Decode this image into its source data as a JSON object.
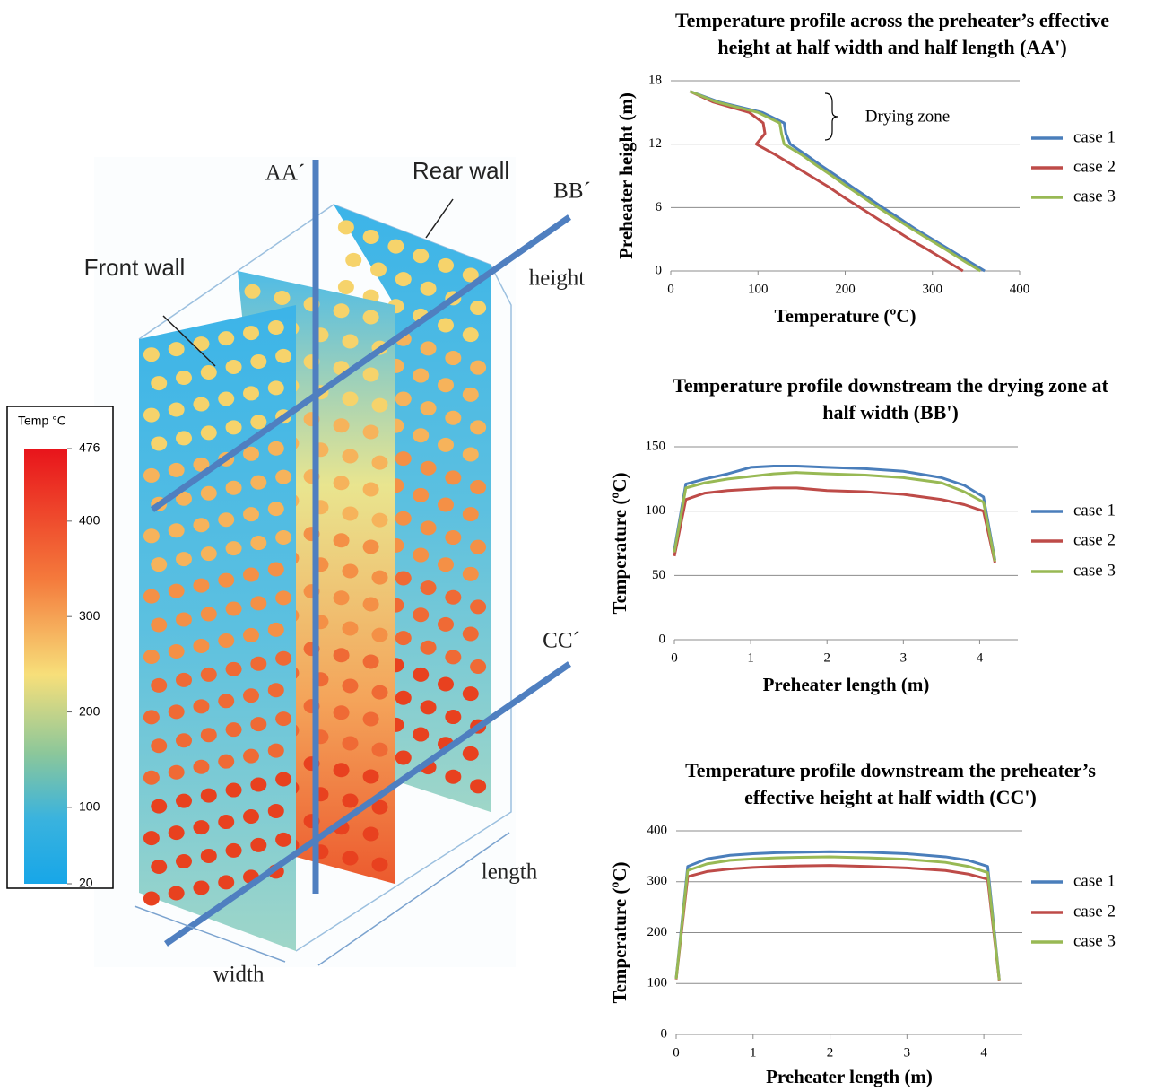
{
  "illustration": {
    "labels": {
      "aa": "AA´",
      "rear": "Rear wall",
      "bb": "BB´",
      "front": "Front wall",
      "height": "height",
      "cc": "CC´",
      "length": "length",
      "width": "width"
    },
    "colorbar": {
      "title": "Temp °C",
      "range": [
        20,
        476
      ],
      "ticks": [
        476,
        400,
        300,
        200,
        100,
        20
      ]
    }
  },
  "chart_data": [
    {
      "type": "line",
      "title": [
        "Temperature profile across the preheater’s effective",
        "height at half width and half length (AA')"
      ],
      "x_label": "Temperature (ºC)",
      "y_label": "Preheater height (m)",
      "y": [
        0,
        1,
        2,
        3,
        4,
        5,
        6,
        7,
        8,
        9,
        10,
        11,
        12,
        13,
        14,
        15,
        16,
        17
      ],
      "series": [
        {
          "name": "case 1",
          "color": "#4a7ebb",
          "values": [
            360,
            340,
            320,
            300,
            280,
            262,
            243,
            225,
            207,
            190,
            172,
            155,
            137,
            132,
            130,
            105,
            55,
            22
          ]
        },
        {
          "name": "case 2",
          "color": "#be4b48",
          "values": [
            335,
            315,
            295,
            274,
            255,
            236,
            217,
            198,
            180,
            160,
            140,
            120,
            98,
            108,
            106,
            90,
            48,
            22
          ]
        },
        {
          "name": "case 3",
          "color": "#98b954",
          "values": [
            355,
            335,
            316,
            296,
            276,
            257,
            238,
            220,
            202,
            185,
            167,
            150,
            130,
            127,
            125,
            100,
            52,
            22
          ]
        }
      ],
      "xlim": [
        0,
        400
      ],
      "xticks": [
        0,
        100,
        200,
        300,
        400
      ],
      "ylim": [
        0,
        18
      ],
      "yticks": [
        0,
        6,
        12,
        18
      ],
      "grid": true,
      "annotation": "Drying zone"
    },
    {
      "type": "line",
      "title": [
        "Temperature profile downstream the drying zone at",
        "half width (BB')"
      ],
      "x_label": "Preheater length (m)",
      "y_label": "Temperature (ºC)",
      "x": [
        0,
        0.15,
        0.4,
        0.7,
        1,
        1.3,
        1.6,
        2,
        2.5,
        3,
        3.5,
        3.8,
        4.05,
        4.2
      ],
      "series": [
        {
          "name": "case 1",
          "color": "#4a7ebb",
          "values": [
            70,
            121,
            125,
            129,
            134,
            135,
            135,
            134,
            133,
            131,
            126,
            120,
            111,
            62
          ]
        },
        {
          "name": "case 2",
          "color": "#be4b48",
          "values": [
            65,
            109,
            114,
            116,
            117,
            118,
            118,
            116,
            115,
            113,
            109,
            105,
            100,
            60
          ]
        },
        {
          "name": "case 3",
          "color": "#98b954",
          "values": [
            68,
            118,
            122,
            125,
            127,
            129,
            130,
            129,
            128,
            126,
            122,
            115,
            107,
            61
          ]
        }
      ],
      "xlim": [
        0,
        4.5
      ],
      "xticks": [
        0,
        1,
        2,
        3,
        4
      ],
      "ylim": [
        0,
        150
      ],
      "yticks": [
        0,
        50,
        100,
        150
      ],
      "grid": true
    },
    {
      "type": "line",
      "title": [
        "Temperature profile downstream the preheater’s",
        "effective height at half width (CC')"
      ],
      "x_label": "Preheater length (m)",
      "y_label": "Temperature (ºC)",
      "x": [
        0,
        0.15,
        0.4,
        0.7,
        1,
        1.3,
        1.6,
        2,
        2.5,
        3,
        3.5,
        3.8,
        4.05,
        4.2
      ],
      "series": [
        {
          "name": "case 1",
          "color": "#4a7ebb",
          "values": [
            110,
            330,
            345,
            352,
            355,
            357,
            358,
            359,
            358,
            355,
            349,
            342,
            330,
            108
          ]
        },
        {
          "name": "case 2",
          "color": "#be4b48",
          "values": [
            108,
            310,
            320,
            325,
            328,
            330,
            331,
            332,
            330,
            327,
            322,
            315,
            305,
            106
          ]
        },
        {
          "name": "case 3",
          "color": "#98b954",
          "values": [
            109,
            322,
            335,
            342,
            345,
            347,
            348,
            349,
            347,
            344,
            338,
            330,
            318,
            107
          ]
        }
      ],
      "xlim": [
        0,
        4.5
      ],
      "xticks": [
        0,
        1,
        2,
        3,
        4
      ],
      "ylim": [
        0,
        400
      ],
      "yticks": [
        0,
        100,
        200,
        300,
        400
      ],
      "grid": true
    }
  ]
}
